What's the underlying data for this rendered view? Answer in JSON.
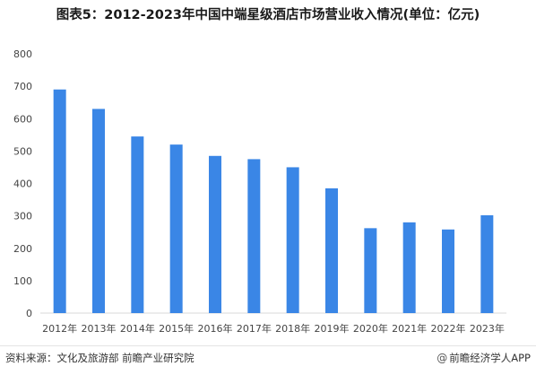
{
  "chart_data": {
    "type": "bar",
    "title": "图表5：2012-2023年中国中端星级酒店市场营业收入情况(单位：亿元)",
    "categories": [
      "2012年",
      "2013年",
      "2014年",
      "2015年",
      "2016年",
      "2017年",
      "2018年",
      "2019年",
      "2020年",
      "2021年",
      "2022年",
      "2023年"
    ],
    "values": [
      690,
      630,
      545,
      520,
      485,
      475,
      450,
      385,
      262,
      280,
      258,
      302
    ],
    "ylim": [
      0,
      800
    ],
    "yticks": [
      "0",
      "100",
      "200",
      "300",
      "400",
      "500",
      "600",
      "700",
      "800"
    ],
    "grid": false,
    "bar_color": "#3a86e6"
  },
  "footer": {
    "source": "资料来源：文化及旅游部 前瞻产业研究院",
    "brand": "前瞻经济学人APP",
    "brand_icon": "at-icon"
  }
}
